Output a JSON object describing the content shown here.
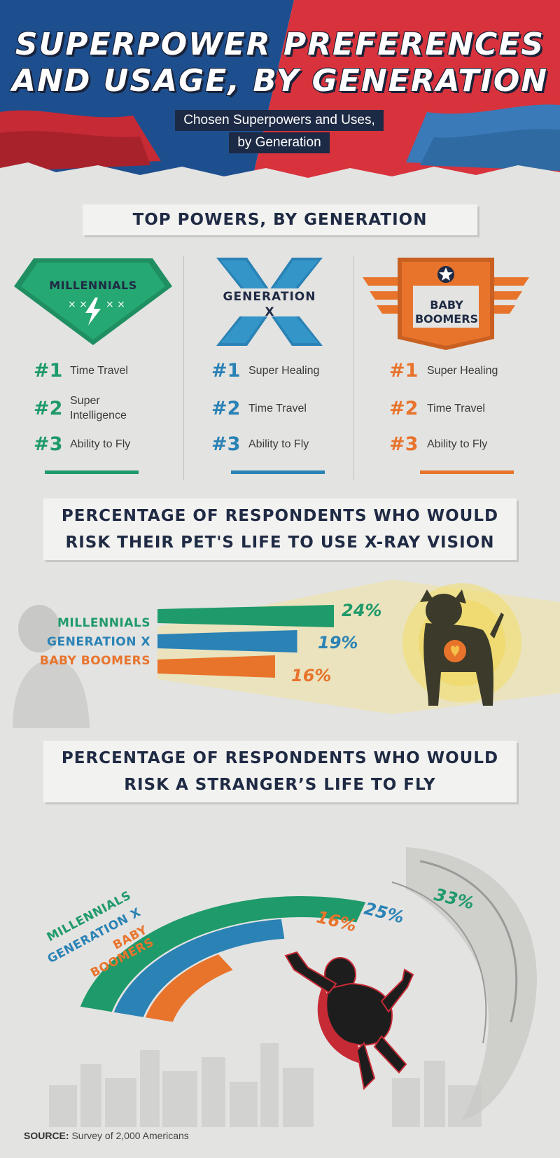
{
  "header": {
    "title_line1": "SUPERPOWER PREFERENCES",
    "title_line2": "AND USAGE, BY GENERATION",
    "subtitle_line1": "Chosen Superpowers and Uses,",
    "subtitle_line2": "by Generation"
  },
  "section1": {
    "heading": "TOP POWERS, BY GENERATION",
    "columns": [
      {
        "badge": "MILLENNIALS",
        "color": "#1f9a6a",
        "ranks": [
          {
            "num": "#1",
            "label": "Time Travel"
          },
          {
            "num": "#2",
            "label": "Super Intelligence"
          },
          {
            "num": "#3",
            "label": "Ability to Fly"
          }
        ]
      },
      {
        "badge_line1": "GENERATION",
        "badge_line2": "X",
        "color": "#2a82b5",
        "ranks": [
          {
            "num": "#1",
            "label": "Super Healing"
          },
          {
            "num": "#2",
            "label": "Time Travel"
          },
          {
            "num": "#3",
            "label": "Ability to Fly"
          }
        ]
      },
      {
        "badge_line1": "BABY",
        "badge_line2": "BOOMERS",
        "color": "#e8742c",
        "ranks": [
          {
            "num": "#1",
            "label": "Super Healing"
          },
          {
            "num": "#2",
            "label": "Time Travel"
          },
          {
            "num": "#3",
            "label": "Ability to Fly"
          }
        ]
      }
    ]
  },
  "section2": {
    "heading_line1": "PERCENTAGE OF RESPONDENTS WHO WOULD",
    "heading_line2": "RISK THEIR PET'S LIFE TO USE X-RAY VISION"
  },
  "section3": {
    "heading_line1": "PERCENTAGE OF RESPONDENTS WHO WOULD",
    "heading_line2": "RISK A STRANGER’S LIFE TO FLY"
  },
  "source": {
    "label": "SOURCE:",
    "text": "Survey of 2,000 Americans"
  },
  "colors": {
    "millennials": "#1f9a6a",
    "genx": "#2a82b5",
    "boomers": "#e8742c",
    "navy": "#1f2a44",
    "header_blue": "#1d4f8f",
    "header_red": "#d8323d"
  },
  "chart_data": [
    {
      "type": "bar",
      "categories": [
        "MILLENNIALS",
        "GENERATION X",
        "BABY BOOMERS"
      ],
      "values": [
        24,
        19,
        16
      ],
      "value_labels": [
        "24%",
        "19%",
        "16%"
      ],
      "unit": "%"
    },
    {
      "type": "bar",
      "categories": [
        "MILLENNIALS",
        "GENERATION X",
        "BABY BOOMERS"
      ],
      "values": [
        33,
        25,
        16
      ],
      "value_labels": [
        "33%",
        "25%",
        "16%"
      ],
      "unit": "%"
    }
  ]
}
